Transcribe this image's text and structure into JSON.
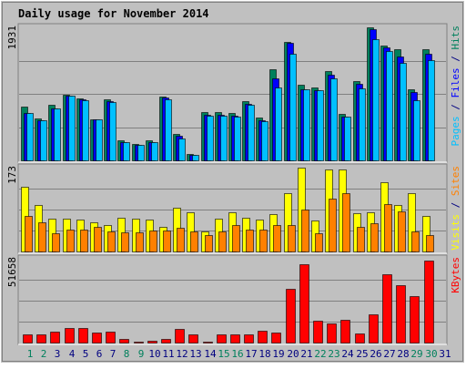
{
  "chart_data": {
    "type": "bar",
    "title": "Daily usage for November 2014",
    "categories": [
      "1",
      "2",
      "3",
      "4",
      "5",
      "6",
      "7",
      "8",
      "9",
      "10",
      "11",
      "12",
      "13",
      "14",
      "15",
      "16",
      "17",
      "18",
      "19",
      "20",
      "21",
      "22",
      "23",
      "24",
      "25",
      "26",
      "27",
      "28",
      "29",
      "30",
      "31"
    ],
    "weekend_days": [
      "1",
      "2",
      "8",
      "9",
      "15",
      "16",
      "22",
      "23",
      "29",
      "30"
    ],
    "panels": [
      {
        "id": "pages-files-hits",
        "y_max_label": "1931",
        "ylim": [
          0,
          1931
        ],
        "legend": [
          {
            "text": "Pages",
            "color": "#00c0ff"
          },
          {
            "text": " / ",
            "color": "#000080"
          },
          {
            "text": "Files",
            "color": "#0000ff"
          },
          {
            "text": " / ",
            "color": "#000080"
          },
          {
            "text": "Hits",
            "color": "#00805c"
          }
        ],
        "series": [
          {
            "name": "Hits",
            "color": "#00805c",
            "values": [
              775,
              615,
              810,
              955,
              895,
              600,
              880,
              290,
              240,
              290,
              930,
              385,
              95,
              700,
              700,
              690,
              855,
              620,
              1320,
              1725,
              1100,
              1060,
              1300,
              680,
              1150,
              1931,
              1665,
              1610,
              1030,
              1620,
              0
            ]
          },
          {
            "name": "Files",
            "color": "#0000ff",
            "values": [
              690,
              580,
              760,
              945,
              880,
              600,
              860,
              270,
              225,
              270,
              915,
              360,
              80,
              660,
              660,
              650,
              820,
              580,
              1190,
              1700,
              1030,
              1020,
              1240,
              640,
              1105,
              1900,
              1645,
              1505,
              990,
              1550,
              0
            ]
          },
          {
            "name": "Pages",
            "color": "#00c0ff",
            "values": [
              690,
              580,
              760,
              940,
              870,
              590,
              850,
              260,
              220,
              260,
              890,
              320,
              80,
              650,
              650,
              630,
              810,
              570,
              1060,
              1545,
              1030,
              1020,
              1190,
              630,
              1050,
              1760,
              1590,
              1410,
              870,
              1450,
              0
            ]
          }
        ]
      },
      {
        "id": "visits-sites",
        "y_max_label": "173",
        "ylim": [
          0,
          173
        ],
        "legend": [
          {
            "text": "Visits",
            "color": "#ffff00"
          },
          {
            "text": " / ",
            "color": "#000080"
          },
          {
            "text": "Sites",
            "color": "#ff8000"
          }
        ],
        "series": [
          {
            "name": "Visits",
            "color": "#ffff00",
            "values": [
              134,
              95,
              67,
              67,
              65,
              60,
              55,
              70,
              68,
              65,
              50,
              90,
              80,
              41,
              67,
              80,
              70,
              65,
              78,
              120,
              173,
              63,
              170,
              170,
              79,
              81,
              142,
              95,
              120,
              73,
              0
            ]
          },
          {
            "name": "Sites",
            "color": "#ff8000",
            "values": [
              74,
              61,
              37,
              46,
              46,
              50,
              42,
              40,
              40,
              44,
              44,
              48,
              42,
              34,
              42,
              55,
              45,
              46,
              54,
              55,
              87,
              38,
              110,
              120,
              50,
              59,
              98,
              82,
              42,
              33,
              0
            ]
          }
        ]
      },
      {
        "id": "kbytes",
        "y_max_label": "51658",
        "ylim": [
          0,
          51658
        ],
        "legend": [
          {
            "text": "KBytes",
            "color": "#ff0000"
          }
        ],
        "series": [
          {
            "name": "KBytes",
            "color": "#ff0000",
            "values": [
              5200,
              5200,
              7000,
              9100,
              9100,
              5900,
              7000,
              2100,
              800,
              1000,
              2100,
              8600,
              5200,
              400,
              5200,
              5200,
              5200,
              7200,
              5900,
              33000,
              48200,
              13500,
              12000,
              14200,
              5500,
              17500,
              42000,
              35400,
              28800,
              50300,
              0
            ]
          }
        ]
      }
    ],
    "colors": {
      "background": "#c0c0c0",
      "gridline": "#808080",
      "title": "#0000ff",
      "weekday_label": "#000080",
      "weekend_label": "#00805c",
      "axis_label": "#000000"
    }
  }
}
